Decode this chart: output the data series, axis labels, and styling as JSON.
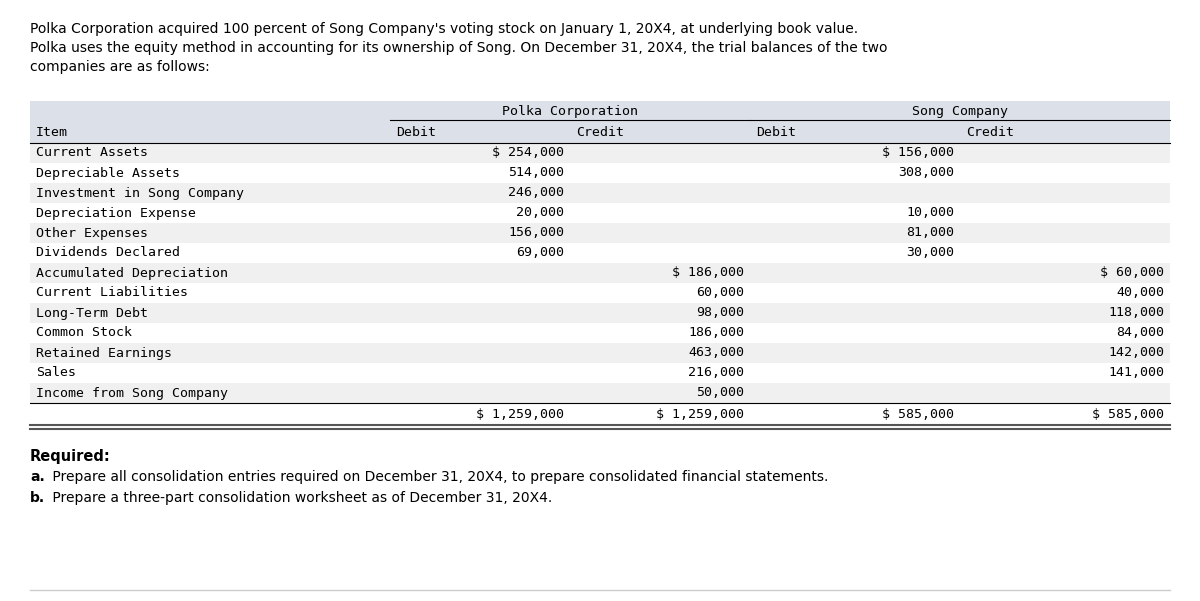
{
  "intro_text": [
    "Polka Corporation acquired 100 percent of Song Company's voting stock on January 1, 20X4, at underlying book value.",
    "Polka uses the equity method in accounting for its ownership of Song. On December 31, 20X4, the trial balances of the two",
    "companies are as follows:"
  ],
  "header_group1": "Polka Corporation",
  "header_group2": "Song Company",
  "col_headers": [
    "Item",
    "Debit",
    "Credit",
    "Debit",
    "Credit"
  ],
  "rows": [
    [
      "Current Assets",
      "$ 254,000",
      "",
      "$ 156,000",
      ""
    ],
    [
      "Depreciable Assets",
      "514,000",
      "",
      "308,000",
      ""
    ],
    [
      "Investment in Song Company",
      "246,000",
      "",
      "",
      ""
    ],
    [
      "Depreciation Expense",
      "20,000",
      "",
      "10,000",
      ""
    ],
    [
      "Other Expenses",
      "156,000",
      "",
      "81,000",
      ""
    ],
    [
      "Dividends Declared",
      "69,000",
      "",
      "30,000",
      ""
    ],
    [
      "Accumulated Depreciation",
      "",
      "$ 186,000",
      "",
      "$ 60,000"
    ],
    [
      "Current Liabilities",
      "",
      "60,000",
      "",
      "40,000"
    ],
    [
      "Long-Term Debt",
      "",
      "98,000",
      "",
      "118,000"
    ],
    [
      "Common Stock",
      "",
      "186,000",
      "",
      "84,000"
    ],
    [
      "Retained Earnings",
      "",
      "463,000",
      "",
      "142,000"
    ],
    [
      "Sales",
      "",
      "216,000",
      "",
      "141,000"
    ],
    [
      "Income from Song Company",
      "",
      "50,000",
      "",
      ""
    ]
  ],
  "totals": [
    "",
    "$ 1,259,000",
    "$ 1,259,000",
    "$ 585,000",
    "$ 585,000"
  ],
  "required_header": "Required:",
  "required_a_label": "a.",
  "required_a_text": " Prepare all consolidation entries required on December 31, 20X4, to prepare consolidated financial statements.",
  "required_b_label": "b.",
  "required_b_text": " Prepare a three-part consolidation worksheet as of December 31, 20X4.",
  "bg_color": "#ffffff",
  "table_header_bg": "#dce0e8",
  "table_row_odd_bg": "#f0f0f0",
  "table_row_even_bg": "#ffffff",
  "font_color": "#000000"
}
